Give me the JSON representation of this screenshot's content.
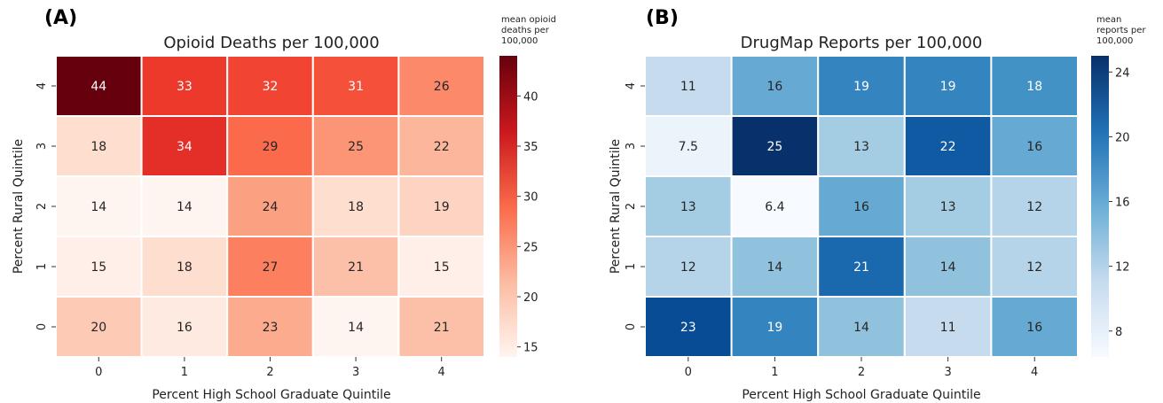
{
  "chart_data": [
    {
      "type": "heatmap",
      "panel_label": "(A)",
      "title": "Opioid Deaths per 100,000",
      "xlabel": "Percent High School Graduate Quintile",
      "ylabel": "Percent Rural Quintile",
      "x_categories": [
        "0",
        "1",
        "2",
        "3",
        "4"
      ],
      "y_categories": [
        "4",
        "3",
        "2",
        "1",
        "0"
      ],
      "values": [
        [
          "44",
          "33",
          "32",
          "31",
          "26"
        ],
        [
          "18",
          "34",
          "29",
          "25",
          "22"
        ],
        [
          "14",
          "14",
          "24",
          "18",
          "19"
        ],
        [
          "15",
          "18",
          "27",
          "21",
          "15"
        ],
        [
          "20",
          "16",
          "23",
          "14",
          "21"
        ]
      ],
      "colormap": "Reds",
      "color_range": [
        14,
        44
      ],
      "colorbar_label": [
        "mean opioid",
        "deaths per",
        "100,000"
      ],
      "colorbar_ticks": [
        "15",
        "20",
        "25",
        "30",
        "35",
        "40"
      ]
    },
    {
      "type": "heatmap",
      "panel_label": "(B)",
      "title": "DrugMap Reports per 100,000",
      "xlabel": "Percent High School Graduate Quintile",
      "ylabel": "Percent Rural Quintile",
      "x_categories": [
        "0",
        "1",
        "2",
        "3",
        "4"
      ],
      "y_categories": [
        "4",
        "3",
        "2",
        "1",
        "0"
      ],
      "values": [
        [
          "11",
          "16",
          "19",
          "19",
          "18"
        ],
        [
          "7.5",
          "25",
          "13",
          "22",
          "16"
        ],
        [
          "13",
          "6.4",
          "16",
          "13",
          "12"
        ],
        [
          "12",
          "14",
          "21",
          "14",
          "12"
        ],
        [
          "23",
          "19",
          "14",
          "11",
          "16"
        ]
      ],
      "colormap": "Blues",
      "color_range": [
        6.4,
        25
      ],
      "colorbar_label": [
        "mean",
        "reports per",
        "100,000"
      ],
      "colorbar_ticks": [
        "8",
        "12",
        "16",
        "20",
        "24"
      ]
    }
  ]
}
